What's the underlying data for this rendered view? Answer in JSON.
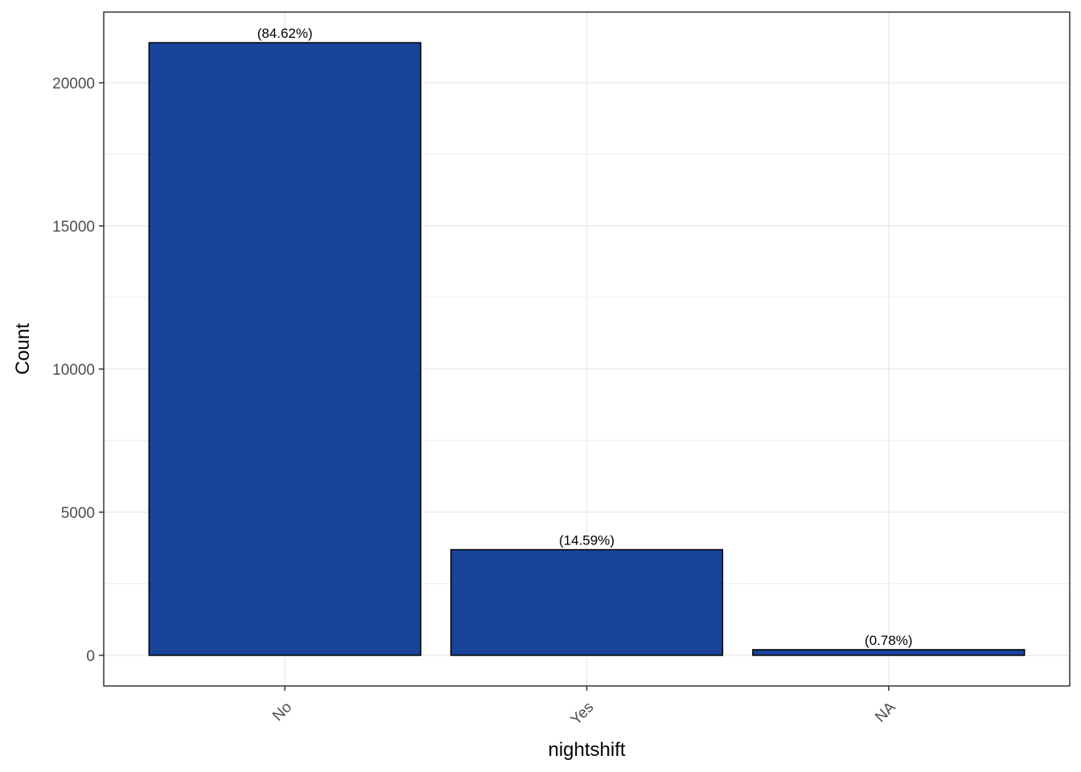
{
  "chart_data": {
    "type": "bar",
    "categories": [
      "No",
      "Yes",
      "NA"
    ],
    "values": [
      21400,
      3690,
      197
    ],
    "data_labels": [
      "(84.62%)",
      "(14.59%)",
      "(0.78%)"
    ],
    "title": "",
    "xlabel": "nightshift",
    "ylabel": "Count",
    "ylim": [
      -1070,
      22470
    ],
    "yticks": [
      0,
      5000,
      10000,
      15000,
      20000
    ],
    "ytick_labels": [
      "0",
      "5000",
      "10000",
      "15000",
      "20000"
    ],
    "grid": true,
    "legend": "none",
    "colors": {
      "bar_fill": "#18449A",
      "bar_stroke": "#000000",
      "grid": "#EBEBEB",
      "panel_border": "#333333"
    }
  }
}
